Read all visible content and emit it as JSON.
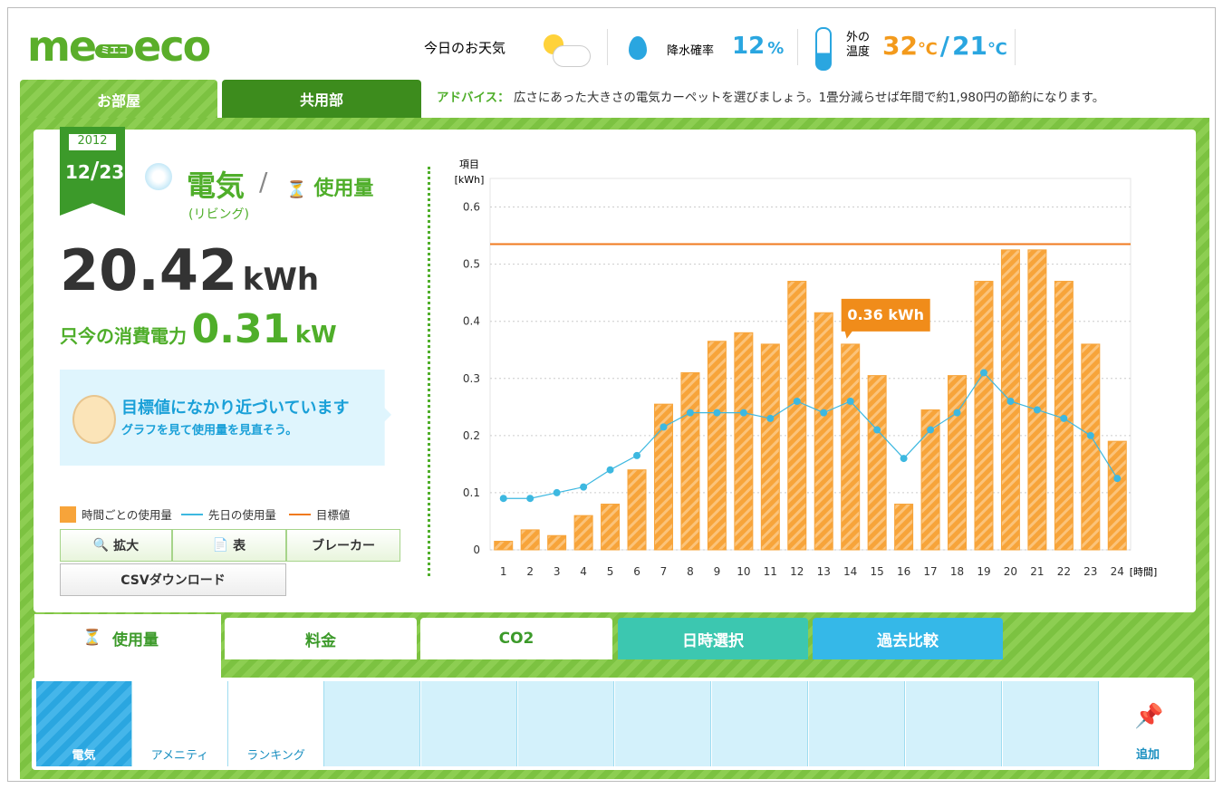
{
  "header": {
    "logo_left": "me",
    "logo_mid": "ミエコ",
    "logo_right": "eco",
    "weather_label": "今日のお天気",
    "rain_label": "降水確率",
    "rain_value": "12",
    "rain_unit": "%",
    "temp_label_1": "外の",
    "temp_label_2": "温度",
    "temp_high": "32",
    "temp_sep": "/",
    "temp_low": "21",
    "temp_unit": "℃"
  },
  "tabs": [
    "お部屋",
    "共用部"
  ],
  "advice": {
    "label": "アドバイス：",
    "text": "広さにあった大きさの電気カーペットを選びましょう。1畳分減らせば年間で約1,980円の節約になります。"
  },
  "panel": {
    "year": "2012",
    "month": "12",
    "day": "23",
    "title": "電気",
    "sep": "/",
    "subtitle": "使用量",
    "room": "(リビング)",
    "total_value": "20.42",
    "total_unit": "kWh",
    "now_label": "只今の消費電力",
    "now_value": "0.31",
    "now_unit": "kW",
    "message_title": "目標値になかり近づいています",
    "message_sub": "グラフを見て使用量を見直そう。",
    "buttons": [
      "拡大",
      "表",
      "ブレーカー"
    ],
    "csv": "CSVダウンロード"
  },
  "chart_data": {
    "type": "bar",
    "y_label": "項目",
    "y_unit": "[kWh]",
    "x_unit": "[時間]",
    "categories": [
      "1",
      "2",
      "3",
      "4",
      "5",
      "6",
      "7",
      "8",
      "9",
      "10",
      "11",
      "12",
      "13",
      "14",
      "15",
      "16",
      "17",
      "18",
      "19",
      "20",
      "21",
      "22",
      "23",
      "24"
    ],
    "series": [
      {
        "name": "時間ごとの使用量",
        "color": "#f7a43a",
        "values": [
          0.015,
          0.035,
          0.025,
          0.06,
          0.08,
          0.14,
          0.255,
          0.31,
          0.365,
          0.38,
          0.36,
          0.47,
          0.415,
          0.36,
          0.305,
          0.08,
          0.245,
          0.305,
          0.47,
          0.525,
          0.525,
          0.47,
          0.36,
          0.19
        ],
        "value_labels": [
          null,
          null,
          null,
          null,
          null,
          null,
          null,
          null,
          null,
          null,
          null,
          null,
          null,
          "0.36 kWh",
          null,
          null,
          null,
          null,
          null,
          null,
          null,
          null,
          null,
          null
        ]
      },
      {
        "name": "先日の使用量",
        "color": "#3db8e0",
        "values": [
          0.09,
          0.09,
          0.1,
          0.11,
          0.14,
          0.165,
          0.215,
          0.24,
          0.24,
          0.24,
          0.23,
          0.26,
          0.24,
          0.26,
          0.21,
          0.16,
          0.21,
          0.24,
          0.31,
          0.26,
          0.245,
          0.23,
          0.2,
          0.125
        ]
      }
    ],
    "target": {
      "name": "目標値",
      "value": 0.535,
      "color": "#f07a1e"
    },
    "ylim": [
      0,
      0.65
    ],
    "yticks": [
      0,
      0.1,
      0.2,
      0.3,
      0.4,
      0.5,
      0.6
    ],
    "grid": true
  },
  "bottom_tabs": [
    "使用量",
    "料金",
    "CO2",
    "日時選択",
    "過去比較"
  ],
  "apps": [
    "電気",
    "アメニティ",
    "ランキング"
  ],
  "add": "追加"
}
